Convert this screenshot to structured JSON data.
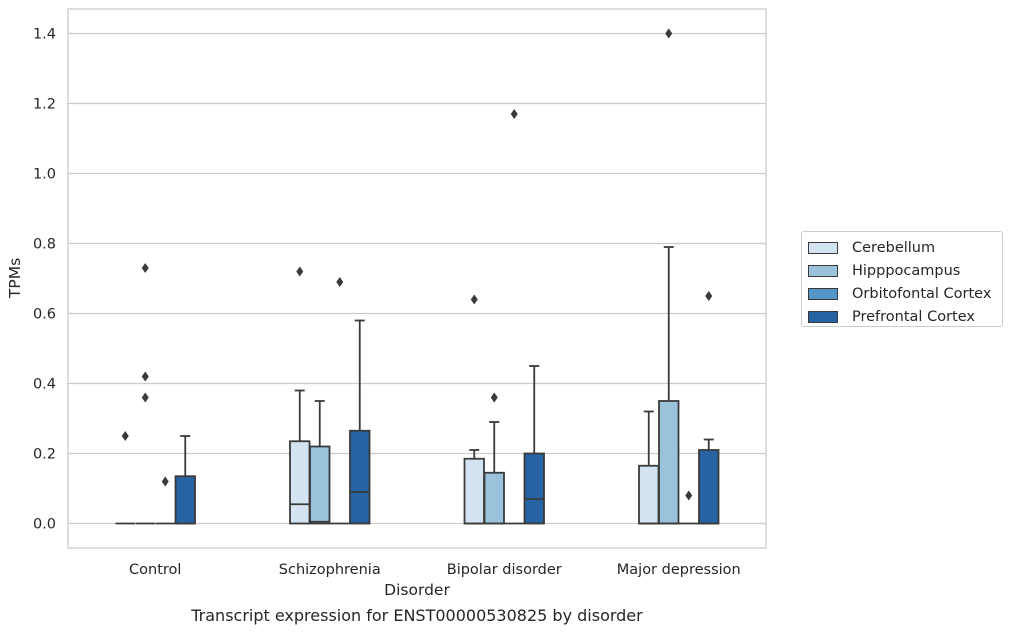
{
  "caption": "Transcript expression for ENST00000530825 by disorder",
  "colors": {
    "Cerebellum": "#d4e3f1",
    "Hipppocampus": "#9ac2db",
    "Orbitofontal Cortex": "#5396c6",
    "Prefrontal Cortex": "#2563a3",
    "grid": "#cccccc",
    "line": "#3a3a3a"
  },
  "chart_data": {
    "type": "box",
    "title": "",
    "xlabel": "Disorder",
    "ylabel": "TPMs",
    "ylim": [
      -0.07,
      1.47
    ],
    "yticks": [
      0.0,
      0.2,
      0.4,
      0.6,
      0.8,
      1.0,
      1.2,
      1.4
    ],
    "ytick_labels": [
      "0.0",
      "0.2",
      "0.4",
      "0.6",
      "0.8",
      "1.0",
      "1.2",
      "1.4"
    ],
    "grid": true,
    "legend_position": "right",
    "categories": [
      "Control",
      "Schizophrenia",
      "Bipolar disorder",
      "Major depression"
    ],
    "series": [
      {
        "name": "Cerebellum",
        "boxes": [
          {
            "q1": 0.0,
            "median": 0.0,
            "q3": 0.0,
            "whisker_low": 0.0,
            "whisker_high": 0.0,
            "outliers": [
              0.25
            ]
          },
          {
            "q1": 0.0,
            "median": 0.055,
            "q3": 0.235,
            "whisker_low": 0.0,
            "whisker_high": 0.38,
            "outliers": [
              0.72
            ]
          },
          {
            "q1": 0.0,
            "median": 0.0,
            "q3": 0.185,
            "whisker_low": 0.0,
            "whisker_high": 0.21,
            "outliers": [
              0.64
            ]
          },
          {
            "q1": 0.0,
            "median": 0.0,
            "q3": 0.165,
            "whisker_low": 0.0,
            "whisker_high": 0.32,
            "outliers": []
          }
        ]
      },
      {
        "name": "Hipppocampus",
        "boxes": [
          {
            "q1": 0.0,
            "median": 0.0,
            "q3": 0.0,
            "whisker_low": 0.0,
            "whisker_high": 0.0,
            "outliers": [
              0.73,
              0.42,
              0.36
            ]
          },
          {
            "q1": 0.0,
            "median": 0.005,
            "q3": 0.22,
            "whisker_low": 0.0,
            "whisker_high": 0.35,
            "outliers": []
          },
          {
            "q1": 0.0,
            "median": 0.0,
            "q3": 0.145,
            "whisker_low": 0.0,
            "whisker_high": 0.29,
            "outliers": [
              0.36
            ]
          },
          {
            "q1": 0.0,
            "median": 0.0,
            "q3": 0.35,
            "whisker_low": 0.0,
            "whisker_high": 0.79,
            "outliers": [
              1.4
            ]
          }
        ]
      },
      {
        "name": "Orbitofontal Cortex",
        "boxes": [
          {
            "q1": 0.0,
            "median": 0.0,
            "q3": 0.0,
            "whisker_low": 0.0,
            "whisker_high": 0.0,
            "outliers": [
              0.12
            ]
          },
          {
            "q1": 0.0,
            "median": 0.0,
            "q3": 0.0,
            "whisker_low": 0.0,
            "whisker_high": 0.0,
            "outliers": [
              0.69
            ]
          },
          {
            "q1": 0.0,
            "median": 0.0,
            "q3": 0.0,
            "whisker_low": 0.0,
            "whisker_high": 0.0,
            "outliers": [
              1.17
            ]
          },
          {
            "q1": 0.0,
            "median": 0.0,
            "q3": 0.0,
            "whisker_low": 0.0,
            "whisker_high": 0.0,
            "outliers": [
              0.08
            ]
          }
        ]
      },
      {
        "name": "Prefrontal Cortex",
        "boxes": [
          {
            "q1": 0.0,
            "median": 0.0,
            "q3": 0.135,
            "whisker_low": 0.0,
            "whisker_high": 0.25,
            "outliers": []
          },
          {
            "q1": 0.0,
            "median": 0.09,
            "q3": 0.265,
            "whisker_low": 0.0,
            "whisker_high": 0.58,
            "outliers": []
          },
          {
            "q1": 0.0,
            "median": 0.07,
            "q3": 0.2,
            "whisker_low": 0.0,
            "whisker_high": 0.45,
            "outliers": []
          },
          {
            "q1": 0.0,
            "median": 0.0,
            "q3": 0.21,
            "whisker_low": 0.0,
            "whisker_high": 0.24,
            "outliers": [
              0.65
            ]
          }
        ]
      }
    ]
  }
}
